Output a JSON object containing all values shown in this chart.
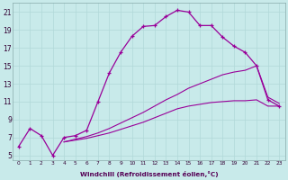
{
  "background_color": "#c8eaea",
  "grid_color": "#aacccc",
  "line_color": "#990099",
  "xlabel": "Windchill (Refroidissement éolien,°C)",
  "ylim": [
    4.5,
    22.0
  ],
  "xlim": [
    -0.5,
    23.5
  ],
  "yticks": [
    5,
    7,
    9,
    11,
    13,
    15,
    17,
    19,
    21
  ],
  "xticks": [
    0,
    1,
    2,
    3,
    4,
    5,
    6,
    7,
    8,
    9,
    10,
    11,
    12,
    13,
    14,
    15,
    16,
    17,
    18,
    19,
    20,
    21,
    22,
    23
  ],
  "main_x": [
    0,
    1,
    2,
    3,
    4,
    5,
    6,
    7,
    8,
    9,
    10,
    11,
    12,
    13,
    14,
    15,
    16,
    17,
    18,
    19,
    20,
    21,
    22,
    23
  ],
  "main_y": [
    6.0,
    8.0,
    7.2,
    5.0,
    7.0,
    7.2,
    7.8,
    11.0,
    14.2,
    16.5,
    18.3,
    19.4,
    19.5,
    20.5,
    21.2,
    21.0,
    19.5,
    19.5,
    18.2,
    17.2,
    16.5,
    15.0,
    11.2,
    10.5
  ],
  "ref1_x": [
    4,
    5,
    6,
    7,
    8,
    9,
    10,
    11,
    12,
    13,
    14,
    15,
    16,
    17,
    18,
    19,
    20,
    21,
    22,
    23
  ],
  "ref1_y": [
    6.5,
    6.7,
    6.9,
    7.2,
    7.5,
    7.9,
    8.3,
    8.7,
    9.2,
    9.7,
    10.2,
    10.5,
    10.7,
    10.9,
    11.0,
    11.1,
    11.1,
    11.2,
    10.5,
    10.5
  ],
  "ref2_x": [
    4,
    5,
    6,
    7,
    8,
    9,
    10,
    11,
    12,
    13,
    14,
    15,
    16,
    17,
    18,
    19,
    20,
    21,
    22,
    23
  ],
  "ref2_y": [
    6.5,
    6.8,
    7.1,
    7.5,
    8.0,
    8.6,
    9.2,
    9.8,
    10.5,
    11.2,
    11.8,
    12.5,
    13.0,
    13.5,
    14.0,
    14.3,
    14.5,
    15.0,
    11.5,
    10.8
  ]
}
